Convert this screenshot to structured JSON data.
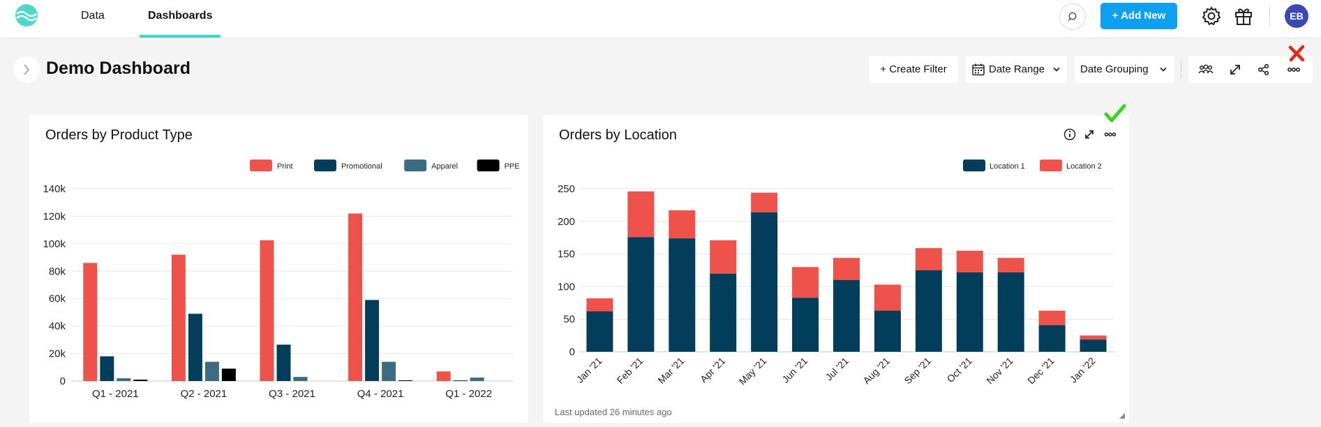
{
  "nav": {
    "tabs": [
      {
        "label": "Data"
      },
      {
        "label": "Dashboards",
        "active": true
      }
    ],
    "add_new_label": "+ Add New",
    "avatar_initials": "EB",
    "accent_color": "#3ed6c6",
    "add_button_color": "#0ea1f2"
  },
  "dashboard": {
    "title": "Demo Dashboard",
    "create_filter_label": "+ Create Filter",
    "date_range_label": "Date Range",
    "date_grouping_label": "Date Grouping"
  },
  "cards": {
    "product": {
      "title": "Orders by Product Type"
    },
    "location": {
      "title": "Orders by Location",
      "footnote": "Last updated 26 minutes ago"
    }
  },
  "chart_data": [
    {
      "type": "bar",
      "title": "Orders by Product Type",
      "categories": [
        "Q1 - 2021",
        "Q2 - 2021",
        "Q3 - 2021",
        "Q4 - 2021",
        "Q1 - 2022"
      ],
      "series": [
        {
          "name": "Print",
          "color": "#ee524a",
          "values": [
            86000,
            92000,
            102500,
            122000,
            7000
          ]
        },
        {
          "name": "Promotional",
          "color": "#023e5b",
          "values": [
            18000,
            49000,
            26500,
            59000,
            500
          ]
        },
        {
          "name": "Apparel",
          "color": "#3b6c84",
          "values": [
            2000,
            14000,
            3000,
            14000,
            2500
          ]
        },
        {
          "name": "PPE",
          "color": "#000000",
          "values": [
            1000,
            9000,
            0,
            500,
            0
          ]
        }
      ],
      "ylim": [
        0,
        140000
      ],
      "yticks": [
        "0",
        "20k",
        "40k",
        "60k",
        "80k",
        "100k",
        "120k",
        "140k"
      ],
      "ytick_values": [
        0,
        20000,
        40000,
        60000,
        80000,
        100000,
        120000,
        140000
      ],
      "grid": true,
      "legend": "top-right"
    },
    {
      "type": "bar",
      "stacked": true,
      "title": "Orders by Location",
      "categories": [
        "Jan '21",
        "Feb '21",
        "Mar '21",
        "Apr '21",
        "May '21",
        "Jun '21",
        "Jul '21",
        "Aug '21",
        "Sep '21",
        "Oct '21",
        "Nov '21",
        "Dec '21",
        "Jan '22"
      ],
      "series": [
        {
          "name": "Location 1",
          "color": "#023e5b",
          "values": [
            62,
            176,
            174,
            120,
            214,
            83,
            110,
            63,
            125,
            122,
            122,
            41,
            19
          ]
        },
        {
          "name": "Location 2",
          "color": "#ee524a",
          "values": [
            20,
            70,
            43,
            51,
            30,
            47,
            34,
            40,
            34,
            33,
            22,
            22,
            6
          ]
        }
      ],
      "ylim": [
        0,
        250
      ],
      "yticks": [
        "0",
        "50",
        "100",
        "150",
        "200",
        "250"
      ],
      "ytick_values": [
        0,
        50,
        100,
        150,
        200,
        250
      ],
      "grid": true,
      "legend": "top-right"
    }
  ]
}
